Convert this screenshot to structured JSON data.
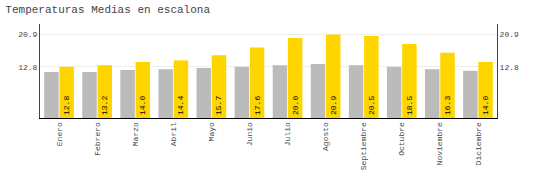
{
  "chart_data": {
    "type": "bar",
    "title": "Temperaturas Medias en escalona",
    "categories": [
      "Enero",
      "Febrero",
      "Marzo",
      "Abril",
      "Mayo",
      "Junio",
      "Julio",
      "Agosto",
      "Septiembre",
      "Octubre",
      "Noviembre",
      "Diciembre"
    ],
    "series": [
      {
        "color": "#BBBBBB",
        "values": [
          11.5,
          11.5,
          12.0,
          12.2,
          12.5,
          12.8,
          13.2,
          13.5,
          13.2,
          12.8,
          12.2,
          11.8
        ]
      },
      {
        "color": "#FFD500",
        "values": [
          12.8,
          13.2,
          14.0,
          14.4,
          15.7,
          17.6,
          20.0,
          20.9,
          20.5,
          18.5,
          16.3,
          14.0
        ],
        "data_labels": true,
        "value_labels": [
          "12.8",
          "13.2",
          "14.0",
          "14.4",
          "15.7",
          "17.6",
          "20.0",
          "20.9",
          "20.5",
          "18.5",
          "16.3",
          "14.0"
        ]
      }
    ],
    "ylim": [
      0,
      23.5
    ],
    "yticks": [
      12.8,
      20.9
    ],
    "y2lim": [
      0,
      23.5
    ],
    "y2ticks": [
      12.8,
      20.9
    ],
    "grid": true
  }
}
